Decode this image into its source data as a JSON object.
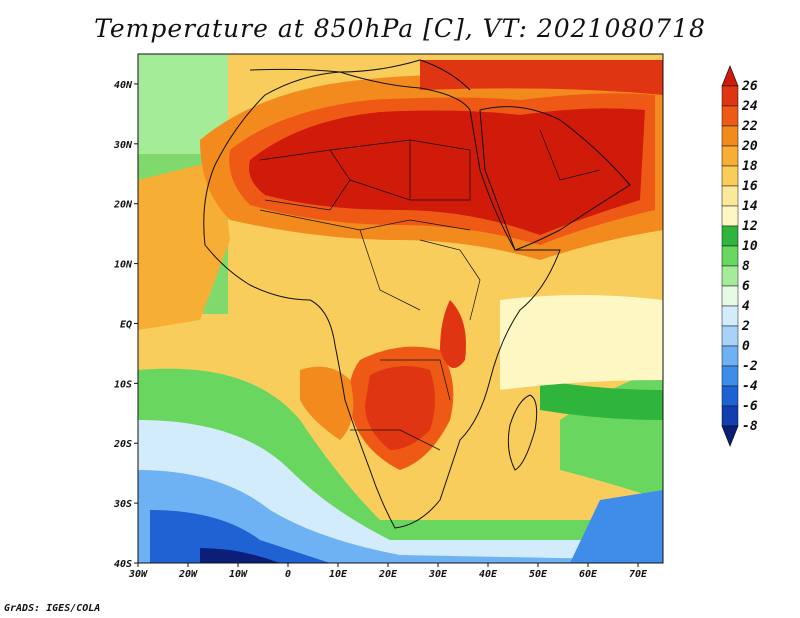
{
  "title": "Temperature at 850hPa [C], VT: 2021080718",
  "credit": "GrADS: IGES/COLA",
  "map": {
    "variable": "Temperature at 850hPa",
    "units": "C",
    "valid_time": "2021080718",
    "lon_range": [
      -30,
      75
    ],
    "lat_range": [
      -40,
      45
    ],
    "lat_labels": [
      "40N",
      "30N",
      "20N",
      "10N",
      "EQ",
      "10S",
      "20S",
      "30S",
      "40S"
    ],
    "lon_labels": [
      "30W",
      "20W",
      "10W",
      "0",
      "10E",
      "20E",
      "30E",
      "40E",
      "50E",
      "60E",
      "70E"
    ]
  },
  "colorbar": {
    "labels": [
      "26",
      "24",
      "22",
      "20",
      "18",
      "16",
      "14",
      "12",
      "10",
      "8",
      "6",
      "4",
      "2",
      "0",
      "-2",
      "-4",
      "-6",
      "-8"
    ],
    "colors": [
      "#d01a0a",
      "#e03512",
      "#ee5a16",
      "#f28a1e",
      "#f7ae34",
      "#f8cd5c",
      "#fbe89a",
      "#fdf7c4",
      "#2fb43c",
      "#69d65f",
      "#a4ec98",
      "#e6fbe6",
      "#d2ecfb",
      "#a7d3f8",
      "#6fb2f3",
      "#3f8de9",
      "#1f62d4",
      "#123fb0",
      "#0b1f78"
    ]
  }
}
